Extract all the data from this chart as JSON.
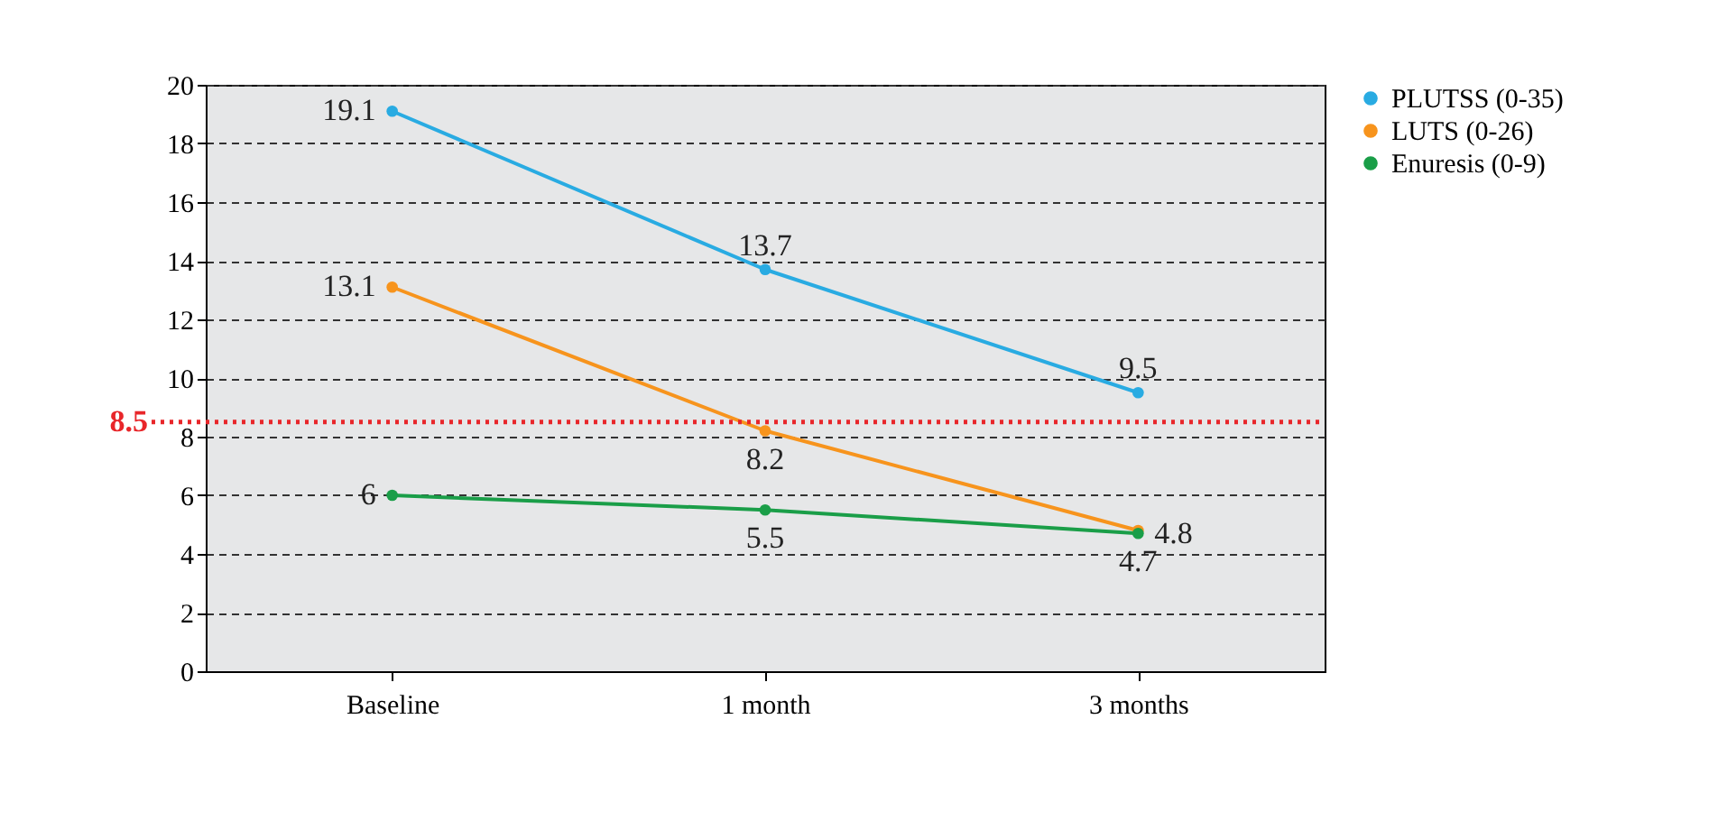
{
  "chart_data": {
    "type": "line",
    "categories": [
      "Baseline",
      "1 month",
      "3 months"
    ],
    "series": [
      {
        "name": "PLUTSS (0-35)",
        "color": "#29abe2",
        "values": [
          19.1,
          13.7,
          9.5
        ]
      },
      {
        "name": "LUTS (0-26)",
        "color": "#f7941d",
        "values": [
          13.1,
          8.2,
          4.8
        ]
      },
      {
        "name": "Enuresis (0-9)",
        "color": "#1a9e48",
        "values": [
          6,
          5.5,
          4.7
        ]
      }
    ],
    "ylim": [
      0,
      20
    ],
    "yticks": [
      0,
      2,
      4,
      6,
      8,
      10,
      12,
      14,
      16,
      18,
      20
    ],
    "ref_lines": [
      {
        "axis": "y",
        "value": 8.5,
        "label": "8.5",
        "color": "#e8262a",
        "line_style": "dotted"
      }
    ],
    "data_labels": true,
    "grid": "y",
    "legend": "right",
    "marker": "circle",
    "line_style": "solid"
  }
}
